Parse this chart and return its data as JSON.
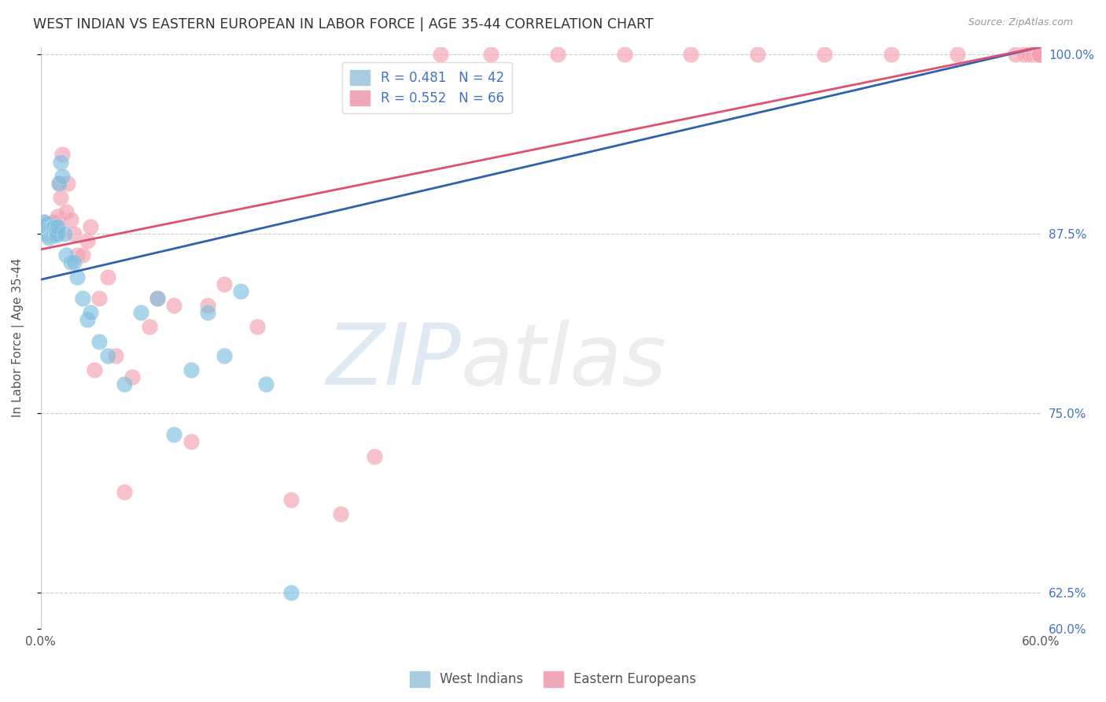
{
  "title": "WEST INDIAN VS EASTERN EUROPEAN IN LABOR FORCE | AGE 35-44 CORRELATION CHART",
  "source": "Source: ZipAtlas.com",
  "ylabel": "In Labor Force | Age 35-44",
  "xlim": [
    0.0,
    0.6
  ],
  "ylim": [
    0.6,
    1.005
  ],
  "xtick_positions": [
    0.0,
    0.1,
    0.2,
    0.3,
    0.4,
    0.5,
    0.6
  ],
  "xticklabels": [
    "0.0%",
    "",
    "",
    "",
    "",
    "",
    "60.0%"
  ],
  "ytick_positions": [
    0.6,
    0.625,
    0.75,
    0.875,
    1.0
  ],
  "yticklabels_right": [
    "60.0%",
    "62.5%",
    "75.0%",
    "87.5%",
    "100.0%"
  ],
  "legend_blue_label": "R = 0.481   N = 42",
  "legend_pink_label": "R = 0.552   N = 66",
  "west_indian_color": "#7fbfdf",
  "eastern_european_color": "#f4a0b0",
  "trend_blue_color": "#3060b0",
  "trend_pink_color": "#e05070",
  "west_indian_x": [
    0.001,
    0.002,
    0.002,
    0.003,
    0.003,
    0.004,
    0.004,
    0.005,
    0.005,
    0.006,
    0.006,
    0.007,
    0.007,
    0.008,
    0.008,
    0.009,
    0.009,
    0.01,
    0.01,
    0.011,
    0.012,
    0.013,
    0.014,
    0.015,
    0.018,
    0.02,
    0.022,
    0.025,
    0.028,
    0.03,
    0.035,
    0.04,
    0.05,
    0.06,
    0.07,
    0.08,
    0.09,
    0.1,
    0.11,
    0.12,
    0.135,
    0.15
  ],
  "west_indian_y": [
    0.878,
    0.877,
    0.883,
    0.876,
    0.88,
    0.875,
    0.882,
    0.872,
    0.878,
    0.874,
    0.879,
    0.875,
    0.879,
    0.876,
    0.88,
    0.874,
    0.877,
    0.875,
    0.88,
    0.91,
    0.925,
    0.915,
    0.875,
    0.86,
    0.855,
    0.855,
    0.845,
    0.83,
    0.815,
    0.82,
    0.8,
    0.79,
    0.77,
    0.82,
    0.83,
    0.735,
    0.78,
    0.82,
    0.79,
    0.835,
    0.77,
    0.625
  ],
  "eastern_european_x": [
    0.001,
    0.002,
    0.002,
    0.003,
    0.003,
    0.004,
    0.004,
    0.005,
    0.005,
    0.006,
    0.006,
    0.007,
    0.007,
    0.008,
    0.008,
    0.009,
    0.009,
    0.01,
    0.01,
    0.011,
    0.012,
    0.013,
    0.015,
    0.016,
    0.018,
    0.02,
    0.022,
    0.025,
    0.028,
    0.03,
    0.032,
    0.035,
    0.04,
    0.045,
    0.05,
    0.055,
    0.065,
    0.07,
    0.08,
    0.09,
    0.1,
    0.11,
    0.13,
    0.15,
    0.18,
    0.2,
    0.24,
    0.27,
    0.31,
    0.35,
    0.39,
    0.43,
    0.47,
    0.51,
    0.55,
    0.585,
    0.59,
    0.593,
    0.595,
    0.597,
    0.598,
    0.599,
    0.599,
    0.599,
    0.599,
    0.599
  ],
  "eastern_european_y": [
    0.88,
    0.878,
    0.883,
    0.877,
    0.882,
    0.876,
    0.879,
    0.874,
    0.88,
    0.875,
    0.881,
    0.876,
    0.882,
    0.877,
    0.883,
    0.875,
    0.88,
    0.88,
    0.887,
    0.91,
    0.9,
    0.93,
    0.89,
    0.91,
    0.885,
    0.875,
    0.86,
    0.86,
    0.87,
    0.88,
    0.78,
    0.83,
    0.845,
    0.79,
    0.695,
    0.775,
    0.81,
    0.83,
    0.825,
    0.73,
    0.825,
    0.84,
    0.81,
    0.69,
    0.68,
    0.72,
    1.0,
    1.0,
    1.0,
    1.0,
    1.0,
    1.0,
    1.0,
    1.0,
    1.0,
    1.0,
    1.0,
    1.0,
    1.0,
    1.0,
    1.0,
    1.0,
    1.0,
    1.0,
    1.0,
    1.0
  ],
  "trend_wi_x0": 0.0,
  "trend_wi_y0": 0.843,
  "trend_wi_x1": 0.6,
  "trend_wi_y1": 1.005,
  "trend_ee_x0": 0.0,
  "trend_ee_y0": 0.864,
  "trend_ee_x1": 0.6,
  "trend_ee_y1": 1.005,
  "background_color": "#ffffff",
  "grid_color": "#cccccc"
}
